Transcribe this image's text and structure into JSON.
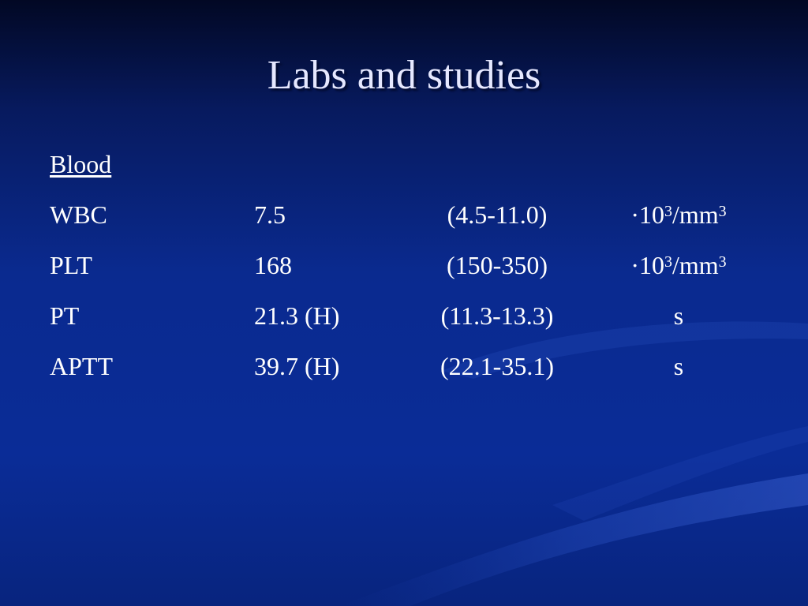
{
  "slide": {
    "title": "Labs and studies",
    "section": "Blood"
  },
  "rows": [
    {
      "name": "WBC",
      "value": "7.5",
      "range": "(4.5-11.0)",
      "unit_prefix": "·10",
      "unit_exp1": "3",
      "unit_mid": "/mm",
      "unit_exp2": "3"
    },
    {
      "name": "PLT",
      "value": "168",
      "range": "(150-350)",
      "unit_prefix": "·10",
      "unit_exp1": "3",
      "unit_mid": "/mm",
      "unit_exp2": "3"
    },
    {
      "name": "PT",
      "value": "21.3 (H)",
      "range": "(11.3-13.3)",
      "unit_prefix": "s",
      "unit_exp1": "",
      "unit_mid": "",
      "unit_exp2": ""
    },
    {
      "name": "APTT",
      "value": "39.7 (H)",
      "range": "(22.1-35.1)",
      "unit_prefix": "s",
      "unit_exp1": "",
      "unit_mid": "",
      "unit_exp2": ""
    }
  ],
  "colors": {
    "background": "#0a2a8f",
    "title": "#e6e8ff",
    "text": "#ffffff"
  }
}
